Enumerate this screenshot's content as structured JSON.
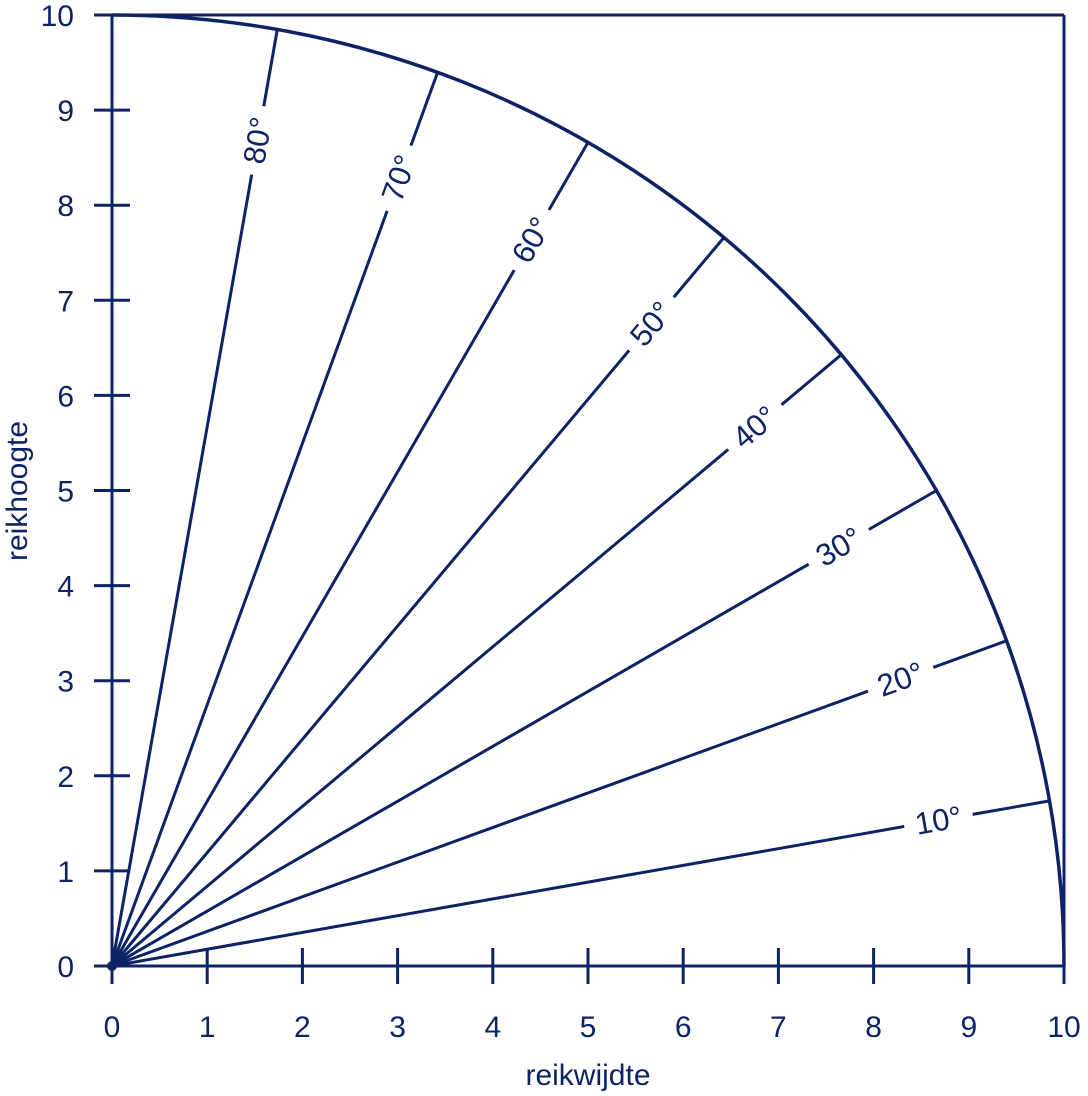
{
  "colors": {
    "ink": "#0d2366",
    "background": "#ffffff"
  },
  "axes": {
    "xlabel": "reikwijdte",
    "ylabel": "reikhoogte",
    "xlim": [
      0,
      10
    ],
    "ylim": [
      0,
      10
    ],
    "x_ticks": [
      "0",
      "1",
      "2",
      "3",
      "4",
      "5",
      "6",
      "7",
      "8",
      "9",
      "10"
    ],
    "y_ticks": [
      "0",
      "1",
      "2",
      "3",
      "4",
      "5",
      "6",
      "7",
      "8",
      "9",
      "10"
    ]
  },
  "arc": {
    "radius": 10,
    "from_deg": 0,
    "to_deg": 90
  },
  "rays": [
    {
      "angle": 10,
      "label": "10°"
    },
    {
      "angle": 20,
      "label": "20°"
    },
    {
      "angle": 30,
      "label": "30°"
    },
    {
      "angle": 40,
      "label": "40°"
    },
    {
      "angle": 50,
      "label": "50°"
    },
    {
      "angle": 60,
      "label": "60°"
    },
    {
      "angle": 70,
      "label": "70°"
    },
    {
      "angle": 80,
      "label": "80°"
    }
  ]
}
